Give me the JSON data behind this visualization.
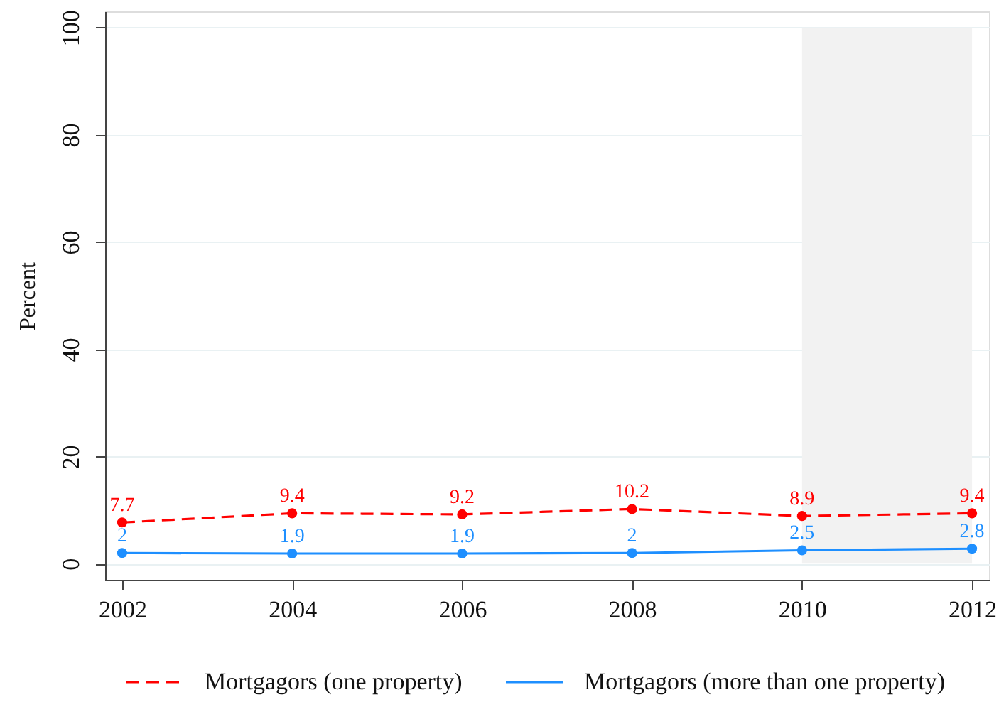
{
  "chart_data": {
    "type": "line",
    "ylabel": "Percent",
    "x": [
      2002,
      2004,
      2006,
      2008,
      2010,
      2012
    ],
    "series": [
      {
        "name": "Mortgagors (one property)",
        "color": "#ff0000",
        "line_style": "dashed",
        "values": [
          7.7,
          9.4,
          9.2,
          10.2,
          8.9,
          9.4
        ]
      },
      {
        "name": "Mortgagors (more than one property)",
        "color": "#1e8fff",
        "line_style": "solid",
        "values": [
          2,
          1.9,
          1.9,
          2,
          2.5,
          2.8
        ]
      }
    ],
    "xlim": [
      2001.8,
      2012.2
    ],
    "xticks": [
      2002,
      2004,
      2006,
      2008,
      2010,
      2012
    ],
    "ylim": [
      -3,
      103
    ],
    "yticks": [
      0,
      20,
      40,
      60,
      80,
      100
    ],
    "bands": [
      {
        "axis": "x",
        "from": 2010,
        "to": 2012,
        "color": "#f2f2f2"
      }
    ],
    "grid": "y",
    "legend": "bottom",
    "marker": "circle",
    "data_labels": true
  }
}
